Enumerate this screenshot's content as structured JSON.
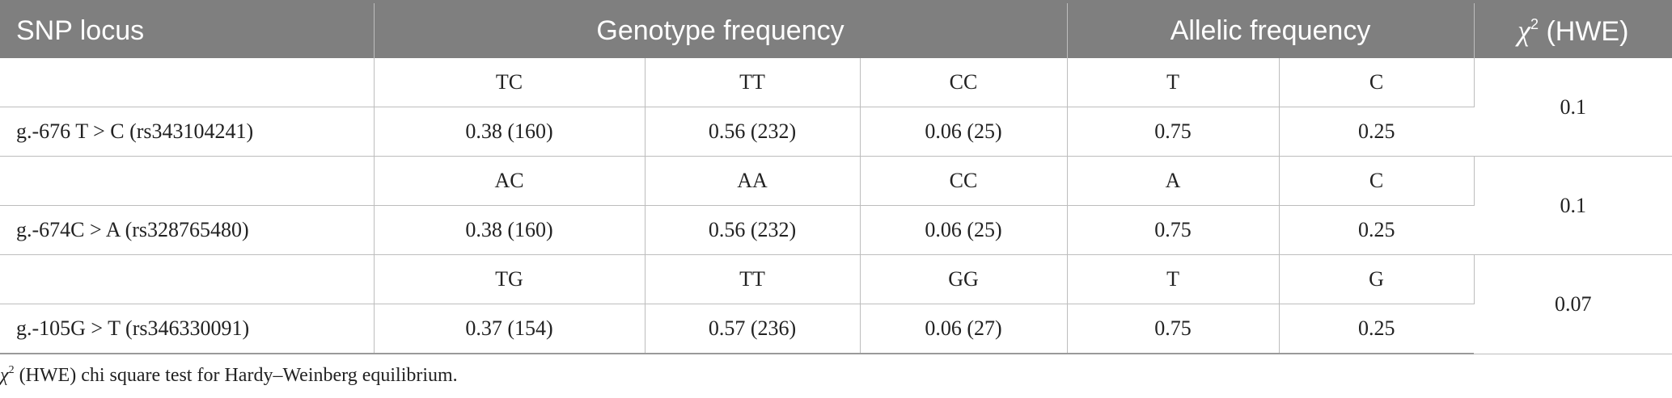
{
  "header": {
    "locus": "SNP locus",
    "genotype": "Genotype frequency",
    "allelic": "Allelic frequency",
    "chi_symbol": "χ",
    "chi_power": "2",
    "chi_rest": " (HWE)"
  },
  "rows": [
    {
      "locus": "g.-676 T > C (rs343104241)",
      "genotype_labels": [
        "TC",
        "TT",
        "CC"
      ],
      "genotype_values": [
        "0.38 (160)",
        "0.56 (232)",
        "0.06 (25)"
      ],
      "allele_labels": [
        "T",
        "C"
      ],
      "allele_values": [
        "0.75",
        "0.25"
      ],
      "hwe": "0.1"
    },
    {
      "locus": "g.-674C > A (rs328765480)",
      "genotype_labels": [
        "AC",
        "AA",
        "CC"
      ],
      "genotype_values": [
        "0.38 (160)",
        "0.56 (232)",
        "0.06 (25)"
      ],
      "allele_labels": [
        "A",
        "C"
      ],
      "allele_values": [
        "0.75",
        "0.25"
      ],
      "hwe": "0.1"
    },
    {
      "locus": "g.-105G > T (rs346330091)",
      "genotype_labels": [
        "TG",
        "TT",
        "GG"
      ],
      "genotype_values": [
        "0.37 (154)",
        "0.57 (236)",
        "0.06 (27)"
      ],
      "allele_labels": [
        "T",
        "G"
      ],
      "allele_values": [
        "0.75",
        "0.25"
      ],
      "hwe": "0.07"
    }
  ],
  "footnote": {
    "chi_symbol": "χ",
    "chi_power": "2",
    "text": " (HWE) chi square test for Hardy–Weinberg equilibrium."
  }
}
